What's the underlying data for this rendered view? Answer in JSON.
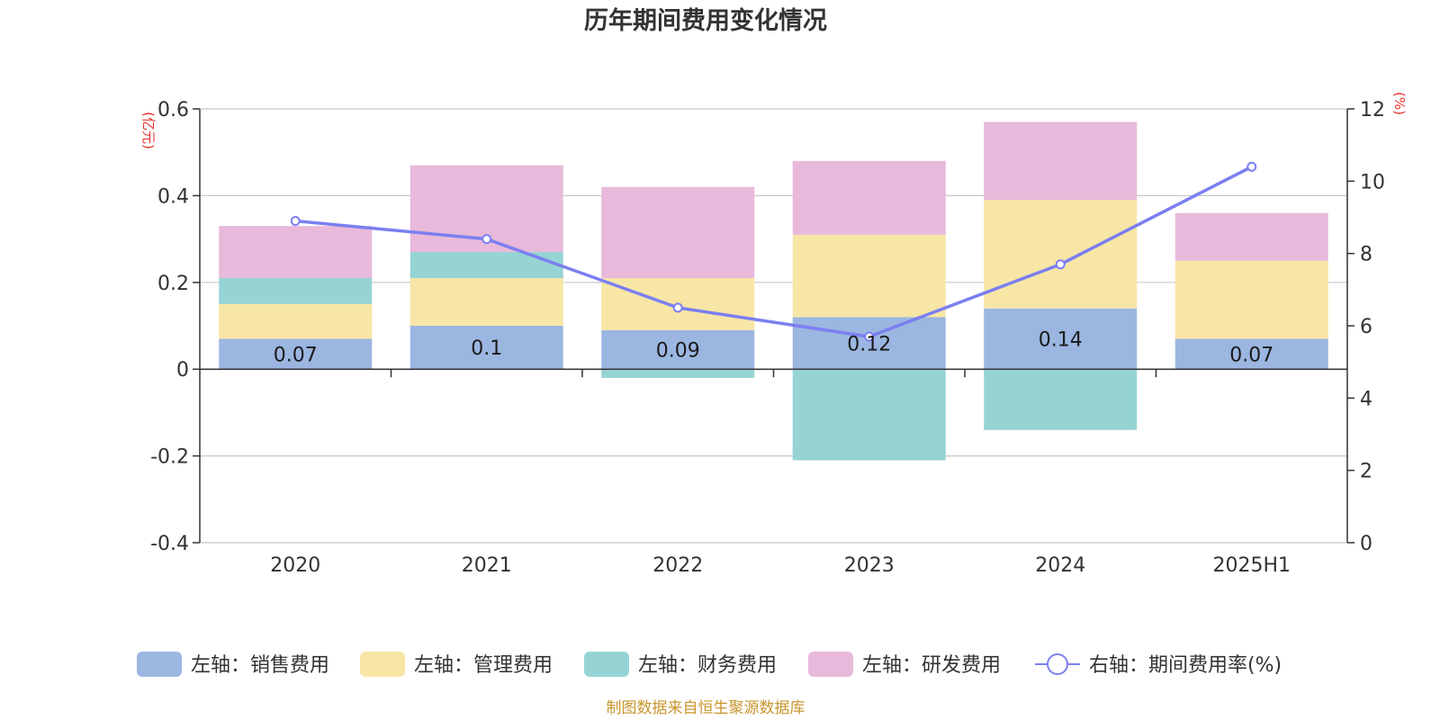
{
  "chart_data": {
    "type": "bar",
    "title": "历年期间费用变化情况",
    "categories": [
      "2020",
      "2021",
      "2022",
      "2023",
      "2024",
      "2025H1"
    ],
    "left_axis": {
      "unit": "(亿元)",
      "ylim": [
        -0.4,
        0.6
      ],
      "ticks": [
        "-0.4",
        "-0.2",
        "0",
        "0.2",
        "0.4",
        "0.6"
      ]
    },
    "right_axis": {
      "unit": "(%)",
      "ylim": [
        0,
        12
      ],
      "ticks": [
        "0",
        "2",
        "4",
        "6",
        "8",
        "10",
        "12"
      ]
    },
    "series": [
      {
        "name": "左轴：销售费用",
        "type": "bar",
        "axis": "left",
        "color": "#9bb6e0",
        "values": [
          0.07,
          0.1,
          0.09,
          0.12,
          0.14,
          0.07
        ],
        "labels": [
          "0.07",
          "0.1",
          "0.09",
          "0.12",
          "0.14",
          "0.07"
        ]
      },
      {
        "name": "左轴：管理费用",
        "type": "bar",
        "axis": "left",
        "color": "#f8e6a6",
        "values": [
          0.08,
          0.11,
          0.12,
          0.19,
          0.25,
          0.18
        ]
      },
      {
        "name": "左轴：财务费用",
        "type": "bar",
        "axis": "left",
        "color": "#96d4d4",
        "values": [
          0.06,
          0.06,
          -0.02,
          -0.21,
          -0.14,
          0.0
        ]
      },
      {
        "name": "左轴：研发费用",
        "type": "bar",
        "axis": "left",
        "color": "#e8b9da",
        "values": [
          0.12,
          0.2,
          0.21,
          0.17,
          0.18,
          0.11
        ]
      },
      {
        "name": "右轴：期间费用率(%)",
        "type": "line",
        "axis": "right",
        "color": "#7b7ff0",
        "values": [
          8.9,
          8.4,
          6.5,
          5.7,
          7.7,
          10.4
        ]
      }
    ],
    "grid": true,
    "legend_position": "bottom"
  },
  "source_text": "制图数据来自恒生聚源数据库"
}
